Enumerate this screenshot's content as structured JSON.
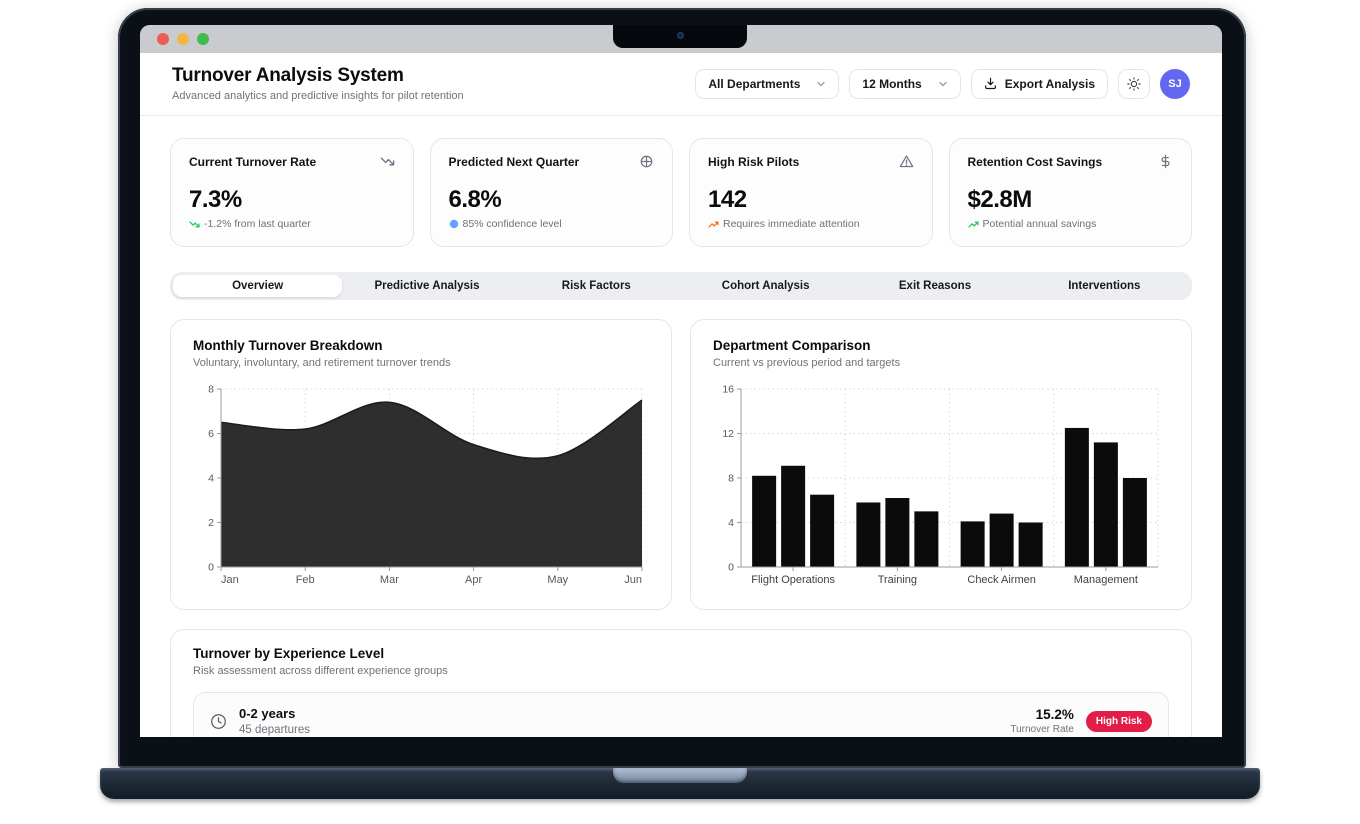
{
  "window": {
    "traffic_lights": [
      "close",
      "minimize",
      "zoom"
    ],
    "traffic_colors": [
      "#ee5d55",
      "#f3b544",
      "#3fbb4f"
    ]
  },
  "header": {
    "title": "Turnover Analysis System",
    "subtitle": "Advanced analytics and predictive insights for pilot retention",
    "department_select": "All Departments",
    "period_select": "12 Months",
    "export_label": "Export Analysis",
    "avatar_initials": "SJ",
    "avatar_color": "#6467f2"
  },
  "stats": [
    {
      "title": "Current Turnover Rate",
      "icon": "trending-down-icon",
      "value": "7.3%",
      "note": "-1.2% from last quarter",
      "note_icon": "trending-down",
      "note_icon_color": "#22c55e"
    },
    {
      "title": "Predicted Next Quarter",
      "icon": "target-icon",
      "value": "6.8%",
      "note": "85% confidence level",
      "note_icon": "dot",
      "note_icon_color": "#60a5fa"
    },
    {
      "title": "High Risk Pilots",
      "icon": "alert-triangle-icon",
      "value": "142",
      "note": "Requires immediate attention",
      "note_icon": "trending-up",
      "note_icon_color": "#f97316"
    },
    {
      "title": "Retention Cost Savings",
      "icon": "dollar-icon",
      "value": "$2.8M",
      "note": "Potential annual savings",
      "note_icon": "trending-up",
      "note_icon_color": "#22c55e"
    }
  ],
  "tabs": [
    {
      "label": "Overview",
      "active": true
    },
    {
      "label": "Predictive Analysis",
      "active": false
    },
    {
      "label": "Risk Factors",
      "active": false
    },
    {
      "label": "Cohort Analysis",
      "active": false
    },
    {
      "label": "Exit Reasons",
      "active": false
    },
    {
      "label": "Interventions",
      "active": false
    }
  ],
  "chart_data": [
    {
      "type": "area",
      "title": "Monthly Turnover Breakdown",
      "subtitle": "Voluntary, involuntary, and retirement turnover trends",
      "x": [
        "Jan",
        "Feb",
        "Mar",
        "Apr",
        "May",
        "Jun"
      ],
      "values": [
        6.5,
        6.2,
        7.4,
        5.5,
        5.0,
        7.5
      ],
      "ylim": [
        0,
        8
      ],
      "yticks": [
        0,
        2,
        4,
        6,
        8
      ],
      "fill": "#2e2e2e",
      "stroke": "#1c1c1c",
      "grid": "dotted",
      "legend": "none"
    },
    {
      "type": "bar",
      "title": "Department Comparison",
      "subtitle": "Current vs previous period and targets",
      "categories": [
        "Flight Operations",
        "Training",
        "Check Airmen",
        "Management"
      ],
      "series": [
        {
          "name": "current",
          "values": [
            8.2,
            5.8,
            4.1,
            12.5
          ]
        },
        {
          "name": "previous",
          "values": [
            9.1,
            6.2,
            4.8,
            11.2
          ]
        },
        {
          "name": "target",
          "values": [
            6.5,
            5.0,
            4.0,
            8.0
          ]
        }
      ],
      "ylim": [
        0,
        16
      ],
      "yticks": [
        0,
        4,
        8,
        12,
        16
      ],
      "bar_color": "#0b0b0b",
      "grid": "dotted",
      "legend": "none"
    }
  ],
  "experience": {
    "title": "Turnover by Experience Level",
    "subtitle": "Risk assessment across different experience groups",
    "rows": [
      {
        "range": "0-2 years",
        "departures": "45 departures",
        "rate": "15.2%",
        "rate_label": "Turnover Rate",
        "badge": "High Risk",
        "badge_color": "#e11d48"
      }
    ]
  }
}
